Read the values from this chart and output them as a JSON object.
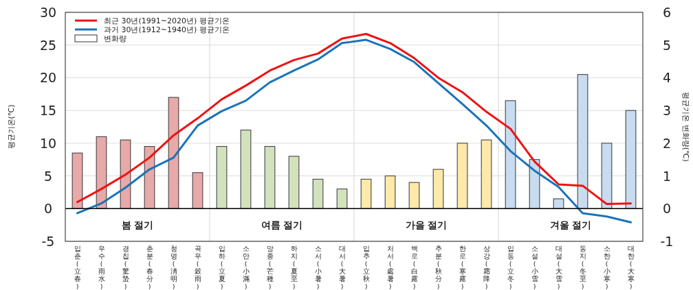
{
  "chart_data": {
    "type": "line",
    "categories": [
      "입춘(立春)",
      "우수(雨水)",
      "경칩(驚蟄)",
      "춘분(春分)",
      "청명(淸明)",
      "곡우(穀雨)",
      "입하(立夏)",
      "소만(小滿)",
      "망종(芒種)",
      "하지(夏至)",
      "소서(小暑)",
      "대서(大暑)",
      "입추(立秋)",
      "처서(處暑)",
      "백로(白露)",
      "추분(秋分)",
      "한로(寒露)",
      "상강(霜降)",
      "입동(立冬)",
      "소설(小雪)",
      "대설(大雪)",
      "동지(冬至)",
      "소한(小寒)",
      "대한(大寒)"
    ],
    "series": [
      {
        "name": "변화량",
        "type": "bar",
        "axis": "y2",
        "color": "#ffffff",
        "colors": [
          "#e8a9a9",
          "#e8a9a9",
          "#e8a9a9",
          "#e8a9a9",
          "#e8a9a9",
          "#e8a9a9",
          "#d3e2bd",
          "#d3e2bd",
          "#d3e2bd",
          "#d3e2bd",
          "#d3e2bd",
          "#d3e2bd",
          "#fde9aa",
          "#fde9aa",
          "#fde9aa",
          "#fde9aa",
          "#fde9aa",
          "#fde9aa",
          "#c8dbef",
          "#c8dbef",
          "#c8dbef",
          "#c8dbef",
          "#c8dbef",
          "#c8dbef"
        ],
        "values": [
          1.7,
          2.2,
          2.1,
          1.9,
          3.4,
          1.1,
          1.9,
          2.4,
          1.9,
          1.6,
          0.9,
          0.6,
          0.9,
          1.0,
          0.8,
          1.2,
          2.0,
          2.1,
          3.3,
          1.5,
          0.3,
          4.1,
          2.0,
          3.0
        ]
      },
      {
        "name": "최근 30년(1991~2020년) 평균기온",
        "color": "#ee1111",
        "values": [
          1.0,
          3.0,
          5.2,
          7.8,
          11.2,
          13.8,
          16.7,
          18.8,
          21.1,
          22.7,
          23.7,
          26.0,
          26.7,
          25.3,
          23.0,
          20.0,
          17.8,
          14.8,
          12.2,
          7.2,
          3.7,
          3.5,
          0.7,
          0.8
        ]
      },
      {
        "name": "과거 30년(1912~1940년) 평균기온",
        "color": "#1a73b8",
        "values": [
          -0.7,
          0.8,
          3.2,
          6.0,
          7.8,
          12.7,
          14.9,
          16.5,
          19.3,
          21.1,
          22.8,
          25.3,
          25.8,
          24.4,
          22.4,
          19.2,
          16.0,
          12.7,
          8.8,
          5.8,
          3.3,
          -0.7,
          -1.2,
          -2.1
        ]
      }
    ],
    "ylabel": "평균기온(℃)",
    "y2label": "평균기온 변화량(℃)",
    "ylim": [
      -5,
      30
    ],
    "yticks": [
      -5,
      0,
      5,
      10,
      15,
      20,
      25,
      30
    ],
    "y2lim": [
      -1,
      6
    ],
    "y2ticks": [
      -1,
      0,
      1,
      2,
      3,
      4,
      5,
      6
    ],
    "annotations": [
      "봄 절기",
      "여름 절기",
      "가을 절기",
      "겨울 절기"
    ],
    "ref_lines": [
      {
        "axis": "y",
        "value": 0,
        "color": "#000000"
      }
    ],
    "grid": "y",
    "legend": "top left",
    "line_style": "solid",
    "marker": "none"
  }
}
